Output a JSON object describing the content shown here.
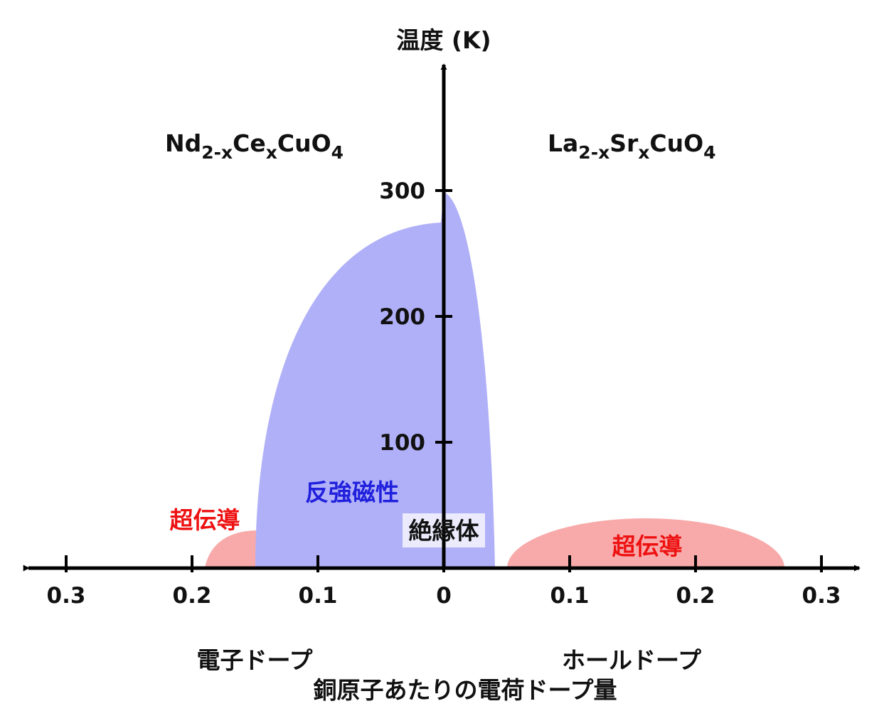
{
  "chart_data": {
    "type": "phase-diagram",
    "y_label": "温度 (K)",
    "x_label": "銅原子あたりの電荷ドープ量",
    "x_side_labels": [
      "電子ドープ",
      "ホールドープ"
    ],
    "formulas": [
      [
        "Nd",
        "2-x",
        "Ce",
        "x",
        "CuO",
        "4"
      ],
      [
        "La",
        "2-x",
        "Sr",
        "x",
        "CuO",
        "4"
      ]
    ],
    "regions": {
      "antiferromagnet": "反強磁性",
      "insulator": "絶縁体",
      "superconductor_left": "超伝導",
      "superconductor_right": "超伝導"
    },
    "xlim": [
      -0.33,
      0.33
    ],
    "ylim": [
      0,
      400
    ],
    "xticks": [
      {
        "value": -0.3,
        "label": "0.3"
      },
      {
        "value": -0.2,
        "label": "0.2"
      },
      {
        "value": -0.1,
        "label": "0.1"
      },
      0,
      0.1,
      0.2,
      0.3
    ],
    "yticks": [
      100,
      200,
      300
    ]
  }
}
